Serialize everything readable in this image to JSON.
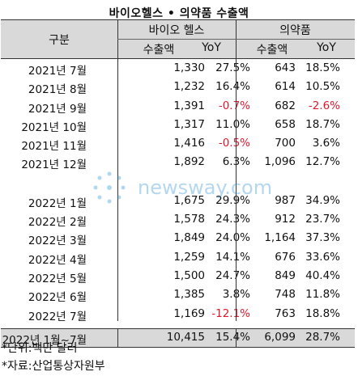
{
  "title": "바이오헬스 • 의약품 수출액",
  "header": {
    "category": "구분",
    "biohealth": "바이오 헬스",
    "pharma": "의약품",
    "export_value": "수출액",
    "yoy": "YoY"
  },
  "rows_2021": [
    {
      "month": "2021년 7월",
      "bio_value": "1,330",
      "bio_yoy": "27.5%",
      "pharma_value": "643",
      "pharma_yoy": "18.5%"
    },
    {
      "month": "2021년 8월",
      "bio_value": "1,232",
      "bio_yoy": "16.4%",
      "pharma_value": "614",
      "pharma_yoy": "10.5%"
    },
    {
      "month": "2021년 9월",
      "bio_value": "1,391",
      "bio_yoy": "-0.7%",
      "pharma_value": "682",
      "pharma_yoy": "-2.6%"
    },
    {
      "month": "2021년 10월",
      "bio_value": "1,317",
      "bio_yoy": "11.0%",
      "pharma_value": "658",
      "pharma_yoy": "18.7%"
    },
    {
      "month": "2021년 11월",
      "bio_value": "1,416",
      "bio_yoy": "-0.5%",
      "pharma_value": "700",
      "pharma_yoy": "3.6%"
    },
    {
      "month": "2021년 12월",
      "bio_value": "1,892",
      "bio_yoy": "6.3%",
      "pharma_value": "1,096",
      "pharma_yoy": "12.7%"
    }
  ],
  "rows_2022": [
    {
      "month": "2022년 1월",
      "bio_value": "1,675",
      "bio_yoy": "29.9%",
      "pharma_value": "987",
      "pharma_yoy": "34.9%"
    },
    {
      "month": "2022년 2월",
      "bio_value": "1,578",
      "bio_yoy": "24.3%",
      "pharma_value": "912",
      "pharma_yoy": "23.7%"
    },
    {
      "month": "2022년 3월",
      "bio_value": "1,849",
      "bio_yoy": "24.0%",
      "pharma_value": "1,164",
      "pharma_yoy": "37.3%"
    },
    {
      "month": "2022년 4월",
      "bio_value": "1,259",
      "bio_yoy": "14.1%",
      "pharma_value": "676",
      "pharma_yoy": "33.6%"
    },
    {
      "month": "2022년 5월",
      "bio_value": "1,500",
      "bio_yoy": "24.7%",
      "pharma_value": "849",
      "pharma_yoy": "40.4%"
    },
    {
      "month": "2022년 6월",
      "bio_value": "1,385",
      "bio_yoy": "3.8%",
      "pharma_value": "748",
      "pharma_yoy": "11.8%"
    },
    {
      "month": "2022년 7월",
      "bio_value": "1,169",
      "bio_yoy": "-12.1%",
      "pharma_value": "763",
      "pharma_yoy": "18.8%"
    }
  ],
  "total": {
    "month": "2022년  1월~7월",
    "bio_value": "10,415",
    "bio_yoy": "15.4%",
    "pharma_value": "6,099",
    "pharma_yoy": "28.7%"
  },
  "notes": {
    "unit": "*단위:백만 달러",
    "source": "*자료:산업통상자원부"
  },
  "colors": {
    "negative": "#e0182d",
    "header_bg": "#d9d9d9",
    "watermark": "#2a8fd6"
  }
}
